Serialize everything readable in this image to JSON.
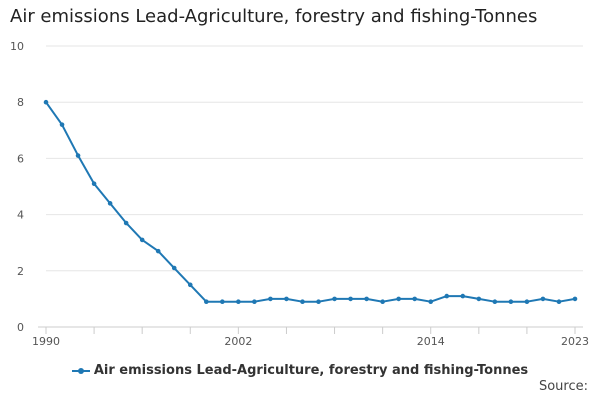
{
  "chart_data": {
    "type": "line",
    "title": "Air emissions Lead-Agriculture, forestry and fishing-Tonnes",
    "xlabel": "",
    "ylabel": "",
    "x": [
      1990,
      1991,
      1992,
      1993,
      1994,
      1995,
      1996,
      1997,
      1998,
      1999,
      2000,
      2001,
      2002,
      2003,
      2004,
      2005,
      2006,
      2007,
      2008,
      2009,
      2010,
      2011,
      2012,
      2013,
      2014,
      2015,
      2016,
      2017,
      2018,
      2019,
      2020,
      2021,
      2022,
      2023
    ],
    "series": [
      {
        "name": "Air emissions Lead-Agriculture, forestry and fishing-Tonnes",
        "color": "#1f78b4",
        "values": [
          8.0,
          7.2,
          6.1,
          5.1,
          4.4,
          3.7,
          3.1,
          2.7,
          2.1,
          1.5,
          0.9,
          0.9,
          0.9,
          0.9,
          1.0,
          1.0,
          0.9,
          0.9,
          1.0,
          1.0,
          1.0,
          0.9,
          1.0,
          1.0,
          0.9,
          1.1,
          1.1,
          1.0,
          0.9,
          0.9,
          0.9,
          1.0,
          0.9,
          1.0
        ]
      }
    ],
    "xlim": [
      1990,
      2023
    ],
    "ylim": [
      0,
      10
    ],
    "yticks": [
      0,
      2,
      4,
      6,
      8,
      10
    ],
    "xtick_labels": [
      "1990",
      "2002",
      "2014",
      "2023"
    ],
    "grid": true,
    "legend": "bottom-center",
    "source_label": "Source:"
  }
}
